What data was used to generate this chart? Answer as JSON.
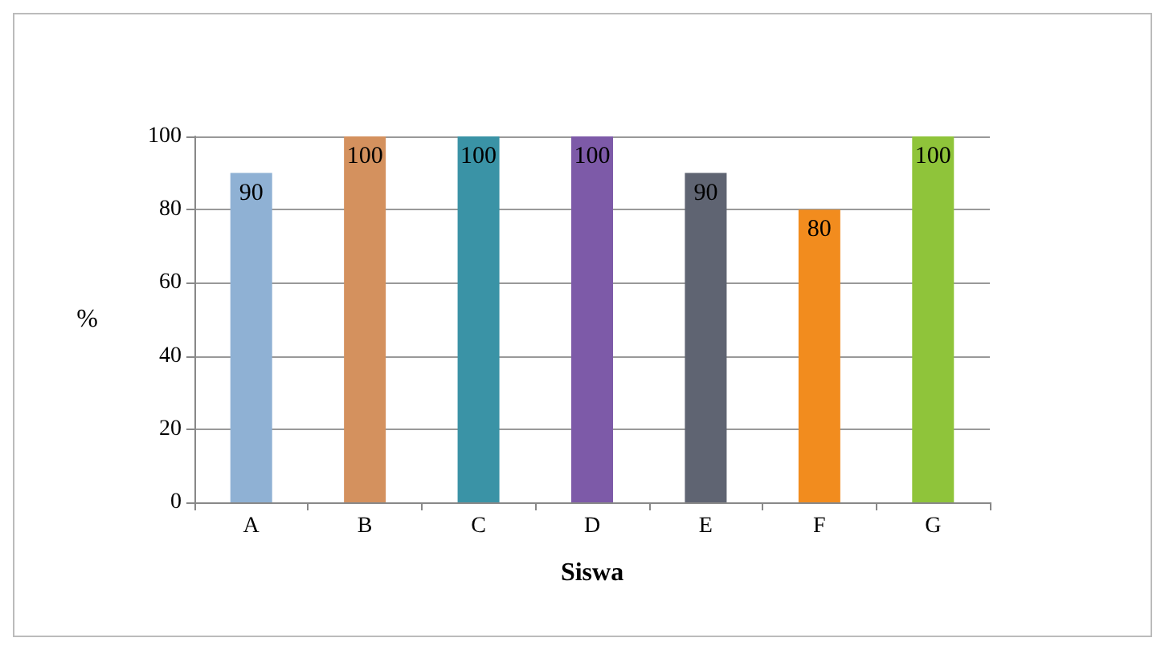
{
  "chart_data": {
    "type": "bar",
    "xlabel": "Siswa",
    "ylabel": "%",
    "categories": [
      "A",
      "B",
      "C",
      "D",
      "E",
      "F",
      "G"
    ],
    "values": [
      90,
      100,
      100,
      100,
      90,
      80,
      100
    ],
    "colors": [
      "#8fb1d4",
      "#d4915e",
      "#3a93a6",
      "#7d5aa8",
      "#5f6472",
      "#f28c1e",
      "#8fc43a"
    ],
    "ylim": [
      0,
      100
    ],
    "yticks": [
      0,
      20,
      40,
      60,
      80,
      100
    ],
    "grid": "y",
    "data_labels": true
  }
}
